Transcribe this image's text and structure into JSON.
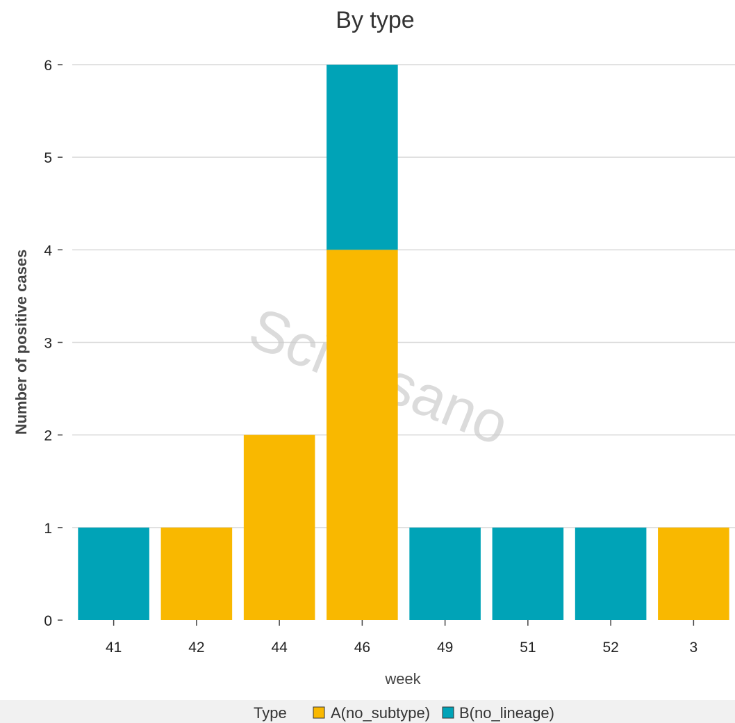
{
  "chart_data": {
    "type": "bar",
    "stacked": true,
    "title": "By type",
    "xlabel": "week",
    "ylabel": "Number of positive cases",
    "categories": [
      "41",
      "42",
      "44",
      "46",
      "49",
      "51",
      "52",
      "3"
    ],
    "series": [
      {
        "name": "A(no_subtype)",
        "color": "#f9b800",
        "values": [
          0,
          1,
          2,
          4,
          0,
          0,
          0,
          1
        ]
      },
      {
        "name": "B(no_lineage)",
        "color": "#00a3b7",
        "values": [
          1,
          0,
          0,
          2,
          1,
          1,
          1,
          0
        ]
      }
    ],
    "ylim": [
      0,
      6
    ],
    "yticks": [
      "0",
      "1",
      "2",
      "3",
      "4",
      "5",
      "6"
    ],
    "grid": true,
    "legend": {
      "title": "Type",
      "position": "bottom"
    },
    "watermark": "Sciensano"
  }
}
